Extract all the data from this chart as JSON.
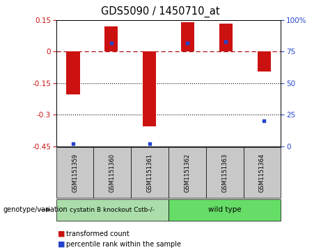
{
  "title": "GDS5090 / 1450710_at",
  "samples": [
    "GSM1151359",
    "GSM1151360",
    "GSM1151361",
    "GSM1151362",
    "GSM1151363",
    "GSM1151364"
  ],
  "red_values": [
    -0.205,
    0.122,
    -0.355,
    0.14,
    0.132,
    -0.095
  ],
  "blue_values": [
    2,
    82,
    2,
    82,
    83,
    20
  ],
  "ylim_left": [
    -0.45,
    0.15
  ],
  "ylim_right": [
    0,
    100
  ],
  "left_ticks": [
    0.15,
    0,
    -0.15,
    -0.3,
    -0.45
  ],
  "right_ticks": [
    100,
    75,
    50,
    25,
    0
  ],
  "bar_color": "#cc1111",
  "dot_color": "#2244cc",
  "group1_label": "cystatin B knockout Cstb-/-",
  "group2_label": "wild type",
  "group1_color": "#aaddaa",
  "group2_color": "#66dd66",
  "legend_label1": "transformed count",
  "legend_label2": "percentile rank within the sample",
  "bar_width": 0.35
}
